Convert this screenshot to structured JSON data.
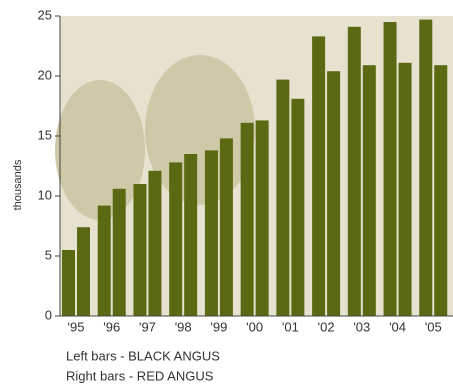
{
  "chart_data": {
    "type": "bar",
    "y_label": "thousands",
    "categories": [
      "'95",
      "'96",
      "'97",
      "'98",
      "'99",
      "'00",
      "'01",
      "'02",
      "'03",
      "'04",
      "'05"
    ],
    "series": [
      {
        "name": "Left bars - BLACK ANGUS",
        "color": "#5b6a12",
        "values": [
          5.5,
          9.2,
          11.0,
          12.8,
          13.8,
          16.1,
          19.7,
          23.3,
          24.1,
          24.5,
          24.7
        ]
      },
      {
        "name": "Right bars - RED ANGUS",
        "color": "#5b6a12",
        "values": [
          7.4,
          10.6,
          12.1,
          13.5,
          14.8,
          16.3,
          18.1,
          20.4,
          20.9,
          21.1,
          20.9
        ]
      }
    ],
    "ylim": [
      0,
      25
    ],
    "yticks": [
      0,
      5,
      10,
      15,
      20,
      25
    ]
  }
}
